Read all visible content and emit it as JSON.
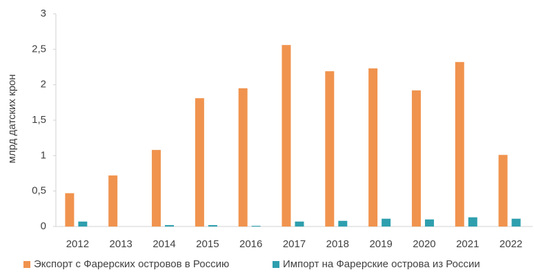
{
  "chart_data": {
    "type": "bar",
    "y_label": "млрд датских крон",
    "categories": [
      "2012",
      "2013",
      "2014",
      "2015",
      "2016",
      "2017",
      "2018",
      "2019",
      "2020",
      "2021",
      "2022"
    ],
    "series": [
      {
        "name": "Экспорт с Фарерских островов в Россию",
        "color": "#f0934e",
        "values": [
          0.47,
          0.72,
          1.08,
          1.81,
          1.95,
          2.56,
          2.19,
          2.23,
          1.92,
          2.32,
          1.01
        ]
      },
      {
        "name": "Импорт на Фарерские острова из России",
        "color": "#2e9fae",
        "values": [
          0.07,
          0,
          0.02,
          0.02,
          0.01,
          0.07,
          0.08,
          0.11,
          0.1,
          0.13,
          0.11
        ]
      }
    ],
    "ylim": [
      0,
      3
    ],
    "yticks": [
      0,
      {
        "value": 0.5,
        "label": "0,5"
      },
      1,
      {
        "value": 1.5,
        "label": "1,5"
      },
      2,
      {
        "value": 2.5,
        "label": "2,5"
      },
      3
    ],
    "grid": false,
    "legend": "bottom"
  }
}
